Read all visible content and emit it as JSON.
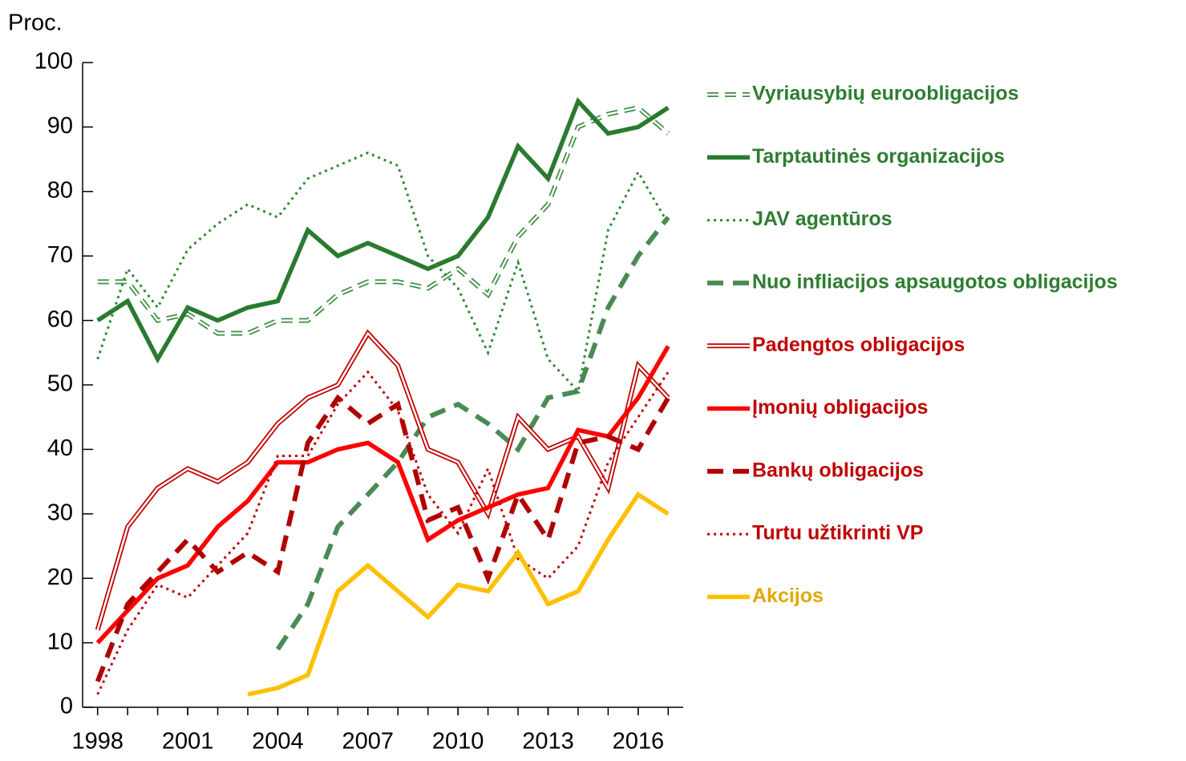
{
  "chart_data": {
    "type": "line",
    "ylabel": "Proc.",
    "x": [
      1998,
      1999,
      2000,
      2001,
      2002,
      2003,
      2004,
      2005,
      2006,
      2007,
      2008,
      2009,
      2010,
      2011,
      2012,
      2013,
      2014,
      2015,
      2016,
      2017
    ],
    "xlim": [
      1997.5,
      2017.5
    ],
    "xticks": [
      1998,
      2001,
      2004,
      2007,
      2010,
      2013,
      2016
    ],
    "ylim": [
      0,
      100
    ],
    "yticks": [
      0,
      10,
      20,
      30,
      40,
      50,
      60,
      70,
      80,
      90,
      100
    ],
    "legend": "right",
    "series": [
      {
        "name": "Vyriausybių euroobligacijos",
        "color": "#3f8f43",
        "style": "double-dashed",
        "label_color": "#2e7d32",
        "values": [
          66,
          66,
          60,
          61,
          58,
          58,
          60,
          60,
          64,
          66,
          66,
          65,
          68,
          64,
          73,
          78,
          90,
          92,
          93,
          89
        ]
      },
      {
        "name": "Tarptautinės organizacijos",
        "color": "#2a7a2f",
        "style": "solid",
        "label_color": "#2e7d32",
        "values": [
          60,
          63,
          54,
          62,
          60,
          62,
          63,
          74,
          70,
          72,
          70,
          68,
          70,
          76,
          87,
          82,
          94,
          89,
          90,
          93
        ]
      },
      {
        "name": "JAV agentūros",
        "color": "#2e8b32",
        "style": "dotted",
        "label_color": "#2e7d32",
        "values": [
          54,
          68,
          62,
          71,
          75,
          78,
          76,
          82,
          84,
          86,
          84,
          70,
          65,
          55,
          69,
          54,
          49,
          74,
          83,
          75
        ]
      },
      {
        "name": "Nuo infliacijos apsaugotos obligacijos",
        "color": "#4a8a55",
        "style": "dashed",
        "label_color": "#2e7d32",
        "values": [
          null,
          null,
          null,
          null,
          null,
          null,
          9,
          16,
          28,
          33,
          38,
          45,
          47,
          44,
          40,
          48,
          49,
          62,
          70,
          76
        ]
      },
      {
        "name": "Padengtos obligacijos",
        "color": "#c00000",
        "style": "double",
        "label_color": "#c00000",
        "values": [
          12,
          28,
          34,
          37,
          35,
          38,
          44,
          48,
          50,
          58,
          53,
          40,
          38,
          30,
          45,
          40,
          42,
          34,
          53,
          48
        ]
      },
      {
        "name": "Įmonių obligacijos",
        "color": "#ff0000",
        "style": "solid",
        "label_color": "#c00000",
        "values": [
          10,
          15,
          20,
          22,
          28,
          32,
          38,
          38,
          40,
          41,
          38,
          26,
          29,
          31,
          33,
          34,
          43,
          42,
          48,
          56
        ]
      },
      {
        "name": "Bankų obligacijos",
        "color": "#b00000",
        "style": "dashed",
        "label_color": "#c00000",
        "values": [
          4,
          16,
          21,
          26,
          21,
          24,
          21,
          41,
          48,
          44,
          47,
          29,
          31,
          20,
          33,
          26,
          41,
          42,
          40,
          48
        ]
      },
      {
        "name": "Turtu užtikrinti VP",
        "color": "#c00000",
        "style": "dotted",
        "label_color": "#c00000",
        "values": [
          2,
          12,
          19,
          17,
          22,
          27,
          39,
          39,
          47,
          52,
          46,
          33,
          27,
          37,
          23,
          20,
          25,
          38,
          45,
          52
        ]
      },
      {
        "name": "Akcijos",
        "color": "#ffc000",
        "style": "solid",
        "label_color": "#e0a800",
        "values": [
          null,
          null,
          null,
          null,
          null,
          2,
          3,
          5,
          18,
          22,
          18,
          14,
          19,
          18,
          24,
          16,
          18,
          26,
          33,
          30
        ]
      }
    ]
  }
}
